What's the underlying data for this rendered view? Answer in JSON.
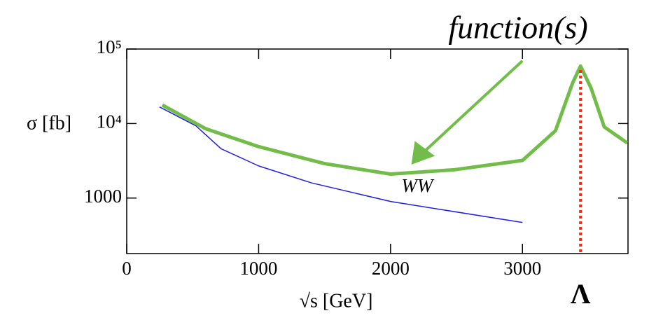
{
  "chart_data": {
    "type": "line",
    "annotation": "function(s)",
    "xlabel": "√s [GeV]",
    "ylabel": "σ [fb]",
    "xlim": [
      0,
      3800
    ],
    "ylim": [
      180,
      100000
    ],
    "log_y": true,
    "xticks": [
      0,
      1000,
      2000,
      3000
    ],
    "yticks": [
      {
        "value": 100000,
        "label": "10⁵"
      },
      {
        "value": 10000,
        "label": "10⁴"
      },
      1000
    ],
    "series": [
      {
        "name": "WW",
        "color": "#1f1fe0",
        "x": [
          249,
          525,
          715,
          1000,
          1400,
          2000,
          3000
        ],
        "values": [
          16700,
          9300,
          4600,
          2700,
          1600,
          900,
          470
        ]
      },
      {
        "color": "#72bd4a",
        "x": [
          270,
          600,
          1000,
          1500,
          2000,
          2485,
          3000,
          3250,
          3380,
          3440,
          3520,
          3620,
          3794
        ],
        "values": [
          17700,
          8500,
          4900,
          2900,
          2100,
          2400,
          3200,
          8000,
          35000,
          59000,
          30000,
          9000,
          5500
        ]
      }
    ],
    "marker": {
      "x": 3440,
      "label": "Λ",
      "color": "#ff2a10"
    }
  }
}
